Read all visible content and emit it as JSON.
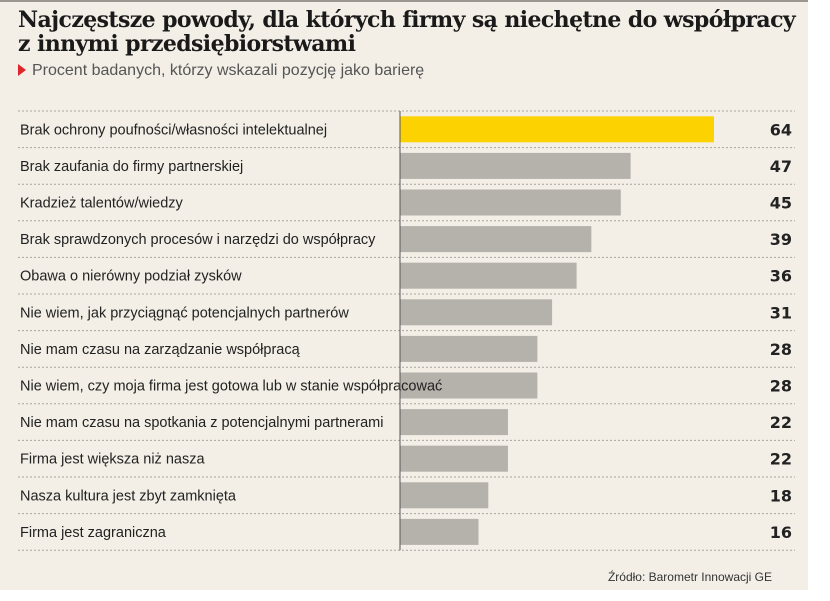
{
  "colors": {
    "highlight": "#fcd300",
    "bar": "#b5b1ab",
    "background": "#f3efe7"
  },
  "chart_data": {
    "type": "bar",
    "orientation": "horizontal",
    "title": "Najczęstsze powody, dla których firmy są niechętne do współpracy z innymi przedsiębiorstwami",
    "subtitle": "Procent badanych, którzy wskazali pozycję jako barierę",
    "categories": [
      "Brak ochrony poufności/własności intelektualnej",
      "Brak zaufania do firmy partnerskiej",
      "Kradzież talentów/wiedzy",
      "Brak sprawdzonych procesów i narzędzi do współpracy",
      "Obawa o nierówny podział zysków",
      "Nie wiem, jak przyciągnąć potencjalnych partnerów",
      "Nie mam czasu na zarządzanie współpracą",
      "Nie wiem, czy moja firma jest gotowa lub w stanie współpracować",
      "Nie mam czasu na spotkania z potencjalnymi partnerami",
      "Firma jest większa niż nasza",
      "Nasza kultura jest zbyt zamknięta",
      "Firma jest zagraniczna"
    ],
    "values": [
      64,
      47,
      45,
      39,
      36,
      31,
      28,
      28,
      22,
      22,
      18,
      16
    ],
    "highlight_index": 0,
    "xlim": [
      0,
      70
    ],
    "source": "Źródło: Barometr Innowacji GE"
  }
}
